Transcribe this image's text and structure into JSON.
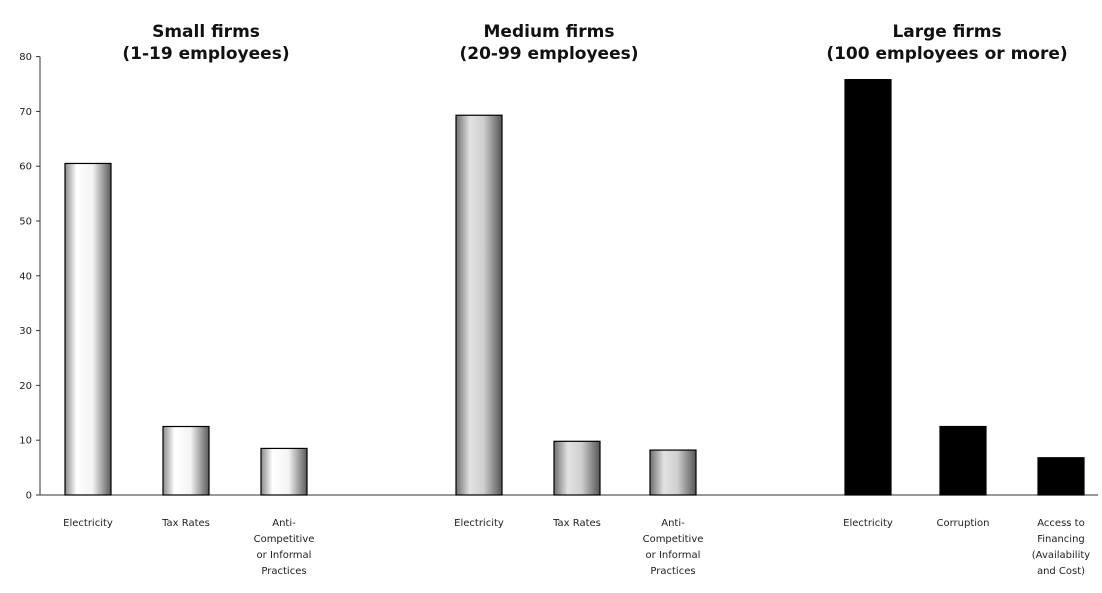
{
  "chart_data": {
    "type": "bar",
    "ylim": [
      0,
      80
    ],
    "yticks": [
      0,
      10,
      20,
      30,
      40,
      50,
      60,
      70,
      80
    ],
    "panels": [
      {
        "title": [
          "Small firms",
          "(1-19 employees)"
        ],
        "categories": [
          [
            "Electricity"
          ],
          [
            "Tax Rates"
          ],
          [
            "Anti-",
            "Competitive",
            "or Informal",
            "Practices"
          ]
        ],
        "values": [
          60.5,
          12.5,
          8.5
        ],
        "style": "white"
      },
      {
        "title": [
          "Medium firms",
          "(20-99 employees)"
        ],
        "categories": [
          [
            "Electricity"
          ],
          [
            "Tax Rates"
          ],
          [
            "Anti-",
            "Competitive",
            "or Informal",
            "Practices"
          ]
        ],
        "values": [
          69.3,
          9.8,
          8.2
        ],
        "style": "gray"
      },
      {
        "title": [
          "Large firms",
          "(100 employees or more)"
        ],
        "categories": [
          [
            "Electricity"
          ],
          [
            "Corruption"
          ],
          [
            "Access to",
            "Financing",
            "(Availability",
            "and Cost)"
          ]
        ],
        "values": [
          75.8,
          12.5,
          6.8
        ],
        "style": "black"
      }
    ]
  }
}
